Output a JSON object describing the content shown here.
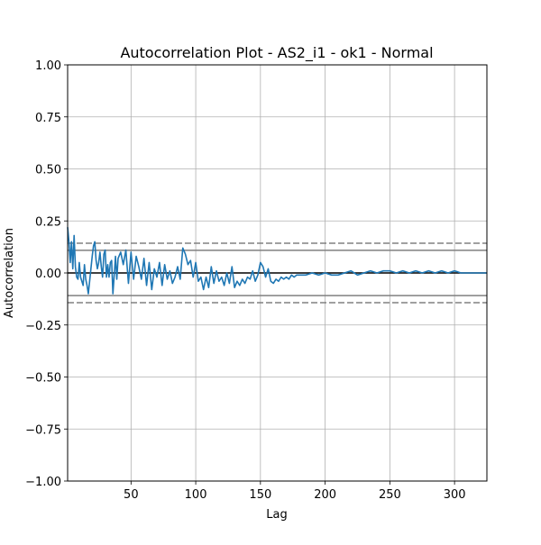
{
  "chart_data": {
    "type": "line",
    "title": "Autocorrelation Plot - AS2_i1 - ok1 - Normal",
    "xlabel": "Lag",
    "ylabel": "Autocorrelation",
    "xlim": [
      1,
      325
    ],
    "ylim": [
      -1.0,
      1.0
    ],
    "xticks": [
      50,
      100,
      150,
      200,
      250,
      300
    ],
    "yticks": [
      1.0,
      0.75,
      0.5,
      0.25,
      0.0,
      -0.25,
      -0.5,
      -0.75,
      -1.0
    ],
    "xtick_labels": [
      "50",
      "100",
      "150",
      "200",
      "250",
      "300"
    ],
    "ytick_labels": [
      "1.00",
      "0.75",
      "0.50",
      "0.25",
      "0.00",
      "−0.25",
      "−0.50",
      "−0.75",
      "−1.00"
    ],
    "grid": true,
    "reference_lines": {
      "zero": 0.0,
      "z95": [
        0.109,
        -0.109
      ],
      "z99": [
        0.143,
        -0.143
      ]
    },
    "series": [
      {
        "color": "#1f77b4",
        "x": [
          1,
          2,
          3,
          4,
          5,
          6,
          7,
          8,
          9,
          10,
          11,
          12,
          13,
          14,
          15,
          16,
          17,
          18,
          19,
          20,
          21,
          22,
          23,
          24,
          25,
          26,
          27,
          28,
          29,
          30,
          31,
          32,
          33,
          34,
          35,
          36,
          37,
          38,
          39,
          40,
          42,
          44,
          46,
          48,
          50,
          52,
          54,
          56,
          58,
          60,
          62,
          64,
          66,
          68,
          70,
          72,
          74,
          76,
          78,
          80,
          82,
          84,
          86,
          88,
          90,
          92,
          94,
          96,
          98,
          100,
          102,
          104,
          106,
          108,
          110,
          112,
          114,
          116,
          118,
          120,
          122,
          124,
          126,
          128,
          130,
          132,
          134,
          136,
          138,
          140,
          142,
          144,
          146,
          148,
          150,
          152,
          154,
          156,
          158,
          160,
          162,
          164,
          166,
          168,
          170,
          172,
          174,
          176,
          178,
          180,
          185,
          190,
          195,
          200,
          205,
          210,
          215,
          220,
          225,
          230,
          235,
          240,
          245,
          250,
          255,
          260,
          265,
          270,
          275,
          280,
          285,
          290,
          295,
          300,
          305,
          310,
          315,
          320,
          325
        ],
        "values": [
          0.22,
          0.15,
          0.05,
          0.15,
          0.02,
          0.18,
          0.03,
          -0.02,
          -0.03,
          0.05,
          -0.02,
          -0.04,
          -0.06,
          0.04,
          -0.03,
          -0.06,
          -0.1,
          -0.04,
          0.02,
          0.08,
          0.13,
          0.15,
          0.06,
          0.02,
          0.05,
          0.1,
          0.03,
          -0.02,
          0.09,
          0.11,
          -0.02,
          0.04,
          -0.02,
          0.05,
          0.06,
          -0.1,
          -0.01,
          0.08,
          -0.03,
          0.07,
          0.1,
          0.04,
          0.11,
          -0.05,
          0.1,
          -0.03,
          0.08,
          0.03,
          -0.03,
          0.07,
          -0.06,
          0.05,
          -0.08,
          0.02,
          -0.02,
          0.05,
          -0.06,
          0.04,
          -0.03,
          0.01,
          -0.05,
          -0.02,
          0.03,
          -0.03,
          0.12,
          0.09,
          0.04,
          0.06,
          -0.02,
          0.05,
          -0.04,
          -0.02,
          -0.08,
          -0.02,
          -0.07,
          0.03,
          -0.05,
          0.01,
          -0.04,
          -0.02,
          -0.06,
          0.0,
          -0.05,
          0.03,
          -0.07,
          -0.04,
          -0.06,
          -0.03,
          -0.05,
          -0.02,
          -0.03,
          0.01,
          -0.04,
          -0.01,
          0.05,
          0.03,
          -0.02,
          0.02,
          -0.04,
          -0.05,
          -0.03,
          -0.04,
          -0.02,
          -0.03,
          -0.02,
          -0.03,
          -0.01,
          -0.02,
          -0.01,
          -0.01,
          -0.01,
          0.0,
          -0.01,
          0.0,
          -0.01,
          -0.01,
          0.0,
          0.01,
          -0.01,
          0.0,
          0.01,
          0.0,
          0.01,
          0.01,
          0.0,
          0.01,
          0.0,
          0.01,
          0.0,
          0.01,
          0.0,
          0.01,
          0.0,
          0.01,
          0.0,
          0.0,
          0.0,
          0.0,
          0.0
        ]
      }
    ]
  }
}
